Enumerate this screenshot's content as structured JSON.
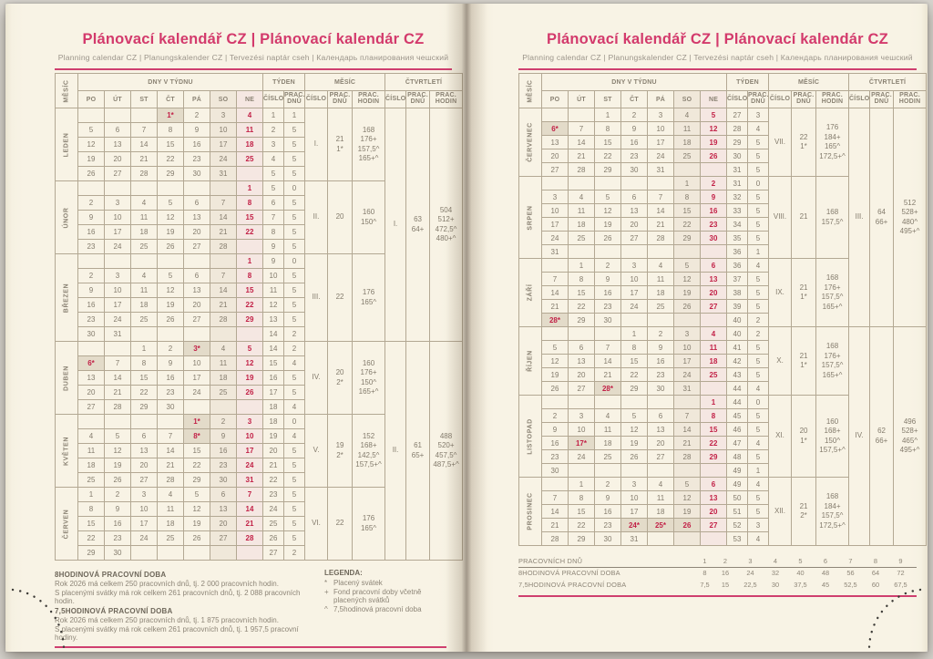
{
  "header": {
    "title": "Plánovací kalendář CZ | Plánovací kalendár CZ",
    "subtitle": "Planning calendar CZ | Planungskalender CZ | Tervezési naptár cseh | Календарь планирования чешский"
  },
  "colors": {
    "accent_pink": "#d33a6c",
    "date_red": "#c22147",
    "holiday_bg": "#e3dbc9",
    "saturday_bg": "#f0e8da",
    "sunday_bg": "#f5e7e2",
    "page_bg": "#f8f3e5",
    "grid_border": "#b3a893",
    "text_grey": "#837b6c"
  },
  "table_header": {
    "mesic": "MĚSÍC",
    "dny": "DNY V TÝDNU",
    "tyden": "TÝDEN",
    "mesic2": "MĚSÍC",
    "ctvrtleti": "ČTVRTLETÍ",
    "days": [
      "PO",
      "ÚT",
      "ST",
      "ČT",
      "PÁ",
      "SO",
      "NE"
    ],
    "cislo": "ČÍSLO",
    "prac_dnu": "PRAC.\nDNŮ",
    "prac_hodin": "PRAC.\nHODIN"
  },
  "pages": [
    {
      "months": [
        {
          "name": "LEDEN",
          "num": "I.",
          "dnu": "21\n1*",
          "hodin": "168\n176+\n157,5^\n165+^",
          "rows": [
            [
              "",
              "",
              "",
              "1*",
              "2",
              "3",
              "4",
              "1",
              "1"
            ],
            [
              "5",
              "6",
              "7",
              "8",
              "9",
              "10",
              "11",
              "2",
              "5"
            ],
            [
              "12",
              "13",
              "14",
              "15",
              "16",
              "17",
              "18",
              "3",
              "5"
            ],
            [
              "19",
              "20",
              "21",
              "22",
              "23",
              "24",
              "25",
              "4",
              "5"
            ],
            [
              "26",
              "27",
              "28",
              "29",
              "30",
              "31",
              "",
              "5",
              "5"
            ]
          ]
        },
        {
          "name": "ÚNOR",
          "num": "II.",
          "dnu": "20",
          "hodin": "160\n150^",
          "rows": [
            [
              "",
              "",
              "",
              "",
              "",
              "",
              "1",
              "5",
              "0"
            ],
            [
              "2",
              "3",
              "4",
              "5",
              "6",
              "7",
              "8",
              "6",
              "5"
            ],
            [
              "9",
              "10",
              "11",
              "12",
              "13",
              "14",
              "15",
              "7",
              "5"
            ],
            [
              "16",
              "17",
              "18",
              "19",
              "20",
              "21",
              "22",
              "8",
              "5"
            ],
            [
              "23",
              "24",
              "25",
              "26",
              "27",
              "28",
              "",
              "9",
              "5"
            ]
          ]
        },
        {
          "name": "BŘEZEN",
          "num": "III.",
          "dnu": "22",
          "hodin": "176\n165^",
          "rows": [
            [
              "",
              "",
              "",
              "",
              "",
              "",
              "1",
              "9",
              "0"
            ],
            [
              "2",
              "3",
              "4",
              "5",
              "6",
              "7",
              "8",
              "10",
              "5"
            ],
            [
              "9",
              "10",
              "11",
              "12",
              "13",
              "14",
              "15",
              "11",
              "5"
            ],
            [
              "16",
              "17",
              "18",
              "19",
              "20",
              "21",
              "22",
              "12",
              "5"
            ],
            [
              "23",
              "24",
              "25",
              "26",
              "27",
              "28",
              "29",
              "13",
              "5"
            ],
            [
              "30",
              "31",
              "",
              "",
              "",
              "",
              "",
              "14",
              "2"
            ]
          ]
        },
        {
          "name": "DUBEN",
          "num": "IV.",
          "dnu": "20\n2*",
          "hodin": "160\n176+\n150^\n165+^",
          "rows": [
            [
              "",
              "",
              "1",
              "2",
              "3*",
              "4",
              "5",
              "14",
              "2"
            ],
            [
              "6*",
              "7",
              "8",
              "9",
              "10",
              "11",
              "12",
              "15",
              "4"
            ],
            [
              "13",
              "14",
              "15",
              "16",
              "17",
              "18",
              "19",
              "16",
              "5"
            ],
            [
              "20",
              "21",
              "22",
              "23",
              "24",
              "25",
              "26",
              "17",
              "5"
            ],
            [
              "27",
              "28",
              "29",
              "30",
              "",
              "",
              "",
              "18",
              "4"
            ]
          ]
        },
        {
          "name": "KVĚTEN",
          "num": "V.",
          "dnu": "19\n2*",
          "hodin": "152\n168+\n142,5^\n157,5+^",
          "rows": [
            [
              "",
              "",
              "",
              "",
              "1*",
              "2",
              "3",
              "18",
              "0"
            ],
            [
              "4",
              "5",
              "6",
              "7",
              "8*",
              "9",
              "10",
              "19",
              "4"
            ],
            [
              "11",
              "12",
              "13",
              "14",
              "15",
              "16",
              "17",
              "20",
              "5"
            ],
            [
              "18",
              "19",
              "20",
              "21",
              "22",
              "23",
              "24",
              "21",
              "5"
            ],
            [
              "25",
              "26",
              "27",
              "28",
              "29",
              "30",
              "31",
              "22",
              "5"
            ]
          ]
        },
        {
          "name": "ČERVEN",
          "num": "VI.",
          "dnu": "22",
          "hodin": "176\n165^",
          "rows": [
            [
              "1",
              "2",
              "3",
              "4",
              "5",
              "6",
              "7",
              "23",
              "5"
            ],
            [
              "8",
              "9",
              "10",
              "11",
              "12",
              "13",
              "14",
              "24",
              "5"
            ],
            [
              "15",
              "16",
              "17",
              "18",
              "19",
              "20",
              "21",
              "25",
              "5"
            ],
            [
              "22",
              "23",
              "24",
              "25",
              "26",
              "27",
              "28",
              "26",
              "5"
            ],
            [
              "29",
              "30",
              "",
              "",
              "",
              "",
              "",
              "27",
              "2"
            ]
          ]
        }
      ],
      "quarters": [
        {
          "num": "I.",
          "dnu": "63\n64+",
          "hodin": "504\n512+\n472,5^\n480+^"
        },
        {
          "num": "II.",
          "dnu": "61\n65+",
          "hodin": "488\n520+\n457,5^\n487,5+^"
        }
      ]
    },
    {
      "months": [
        {
          "name": "ČERVENEC",
          "num": "VII.",
          "dnu": "22\n1*",
          "hodin": "176\n184+\n165^\n172,5+^",
          "rows": [
            [
              "",
              "",
              "1",
              "2",
              "3",
              "4",
              "5",
              "27",
              "3"
            ],
            [
              "6*",
              "7",
              "8",
              "9",
              "10",
              "11",
              "12",
              "28",
              "4"
            ],
            [
              "13",
              "14",
              "15",
              "16",
              "17",
              "18",
              "19",
              "29",
              "5"
            ],
            [
              "20",
              "21",
              "22",
              "23",
              "24",
              "25",
              "26",
              "30",
              "5"
            ],
            [
              "27",
              "28",
              "29",
              "30",
              "31",
              "",
              "",
              "31",
              "5"
            ]
          ]
        },
        {
          "name": "SRPEN",
          "num": "VIII.",
          "dnu": "21",
          "hodin": "168\n157,5^",
          "rows": [
            [
              "",
              "",
              "",
              "",
              "",
              "1",
              "2",
              "31",
              "0"
            ],
            [
              "3",
              "4",
              "5",
              "6",
              "7",
              "8",
              "9",
              "32",
              "5"
            ],
            [
              "10",
              "11",
              "12",
              "13",
              "14",
              "15",
              "16",
              "33",
              "5"
            ],
            [
              "17",
              "18",
              "19",
              "20",
              "21",
              "22",
              "23",
              "34",
              "5"
            ],
            [
              "24",
              "25",
              "26",
              "27",
              "28",
              "29",
              "30",
              "35",
              "5"
            ],
            [
              "31",
              "",
              "",
              "",
              "",
              "",
              "",
              "36",
              "1"
            ]
          ]
        },
        {
          "name": "ZÁŘÍ",
          "num": "IX.",
          "dnu": "21\n1*",
          "hodin": "168\n176+\n157,5^\n165+^",
          "rows": [
            [
              "",
              "1",
              "2",
              "3",
              "4",
              "5",
              "6",
              "36",
              "4"
            ],
            [
              "7",
              "8",
              "9",
              "10",
              "11",
              "12",
              "13",
              "37",
              "5"
            ],
            [
              "14",
              "15",
              "16",
              "17",
              "18",
              "19",
              "20",
              "38",
              "5"
            ],
            [
              "21",
              "22",
              "23",
              "24",
              "25",
              "26",
              "27",
              "39",
              "5"
            ],
            [
              "28*",
              "29",
              "30",
              "",
              "",
              "",
              "",
              "40",
              "2"
            ]
          ]
        },
        {
          "name": "ŘÍJEN",
          "num": "X.",
          "dnu": "21\n1*",
          "hodin": "168\n176+\n157,5^\n165+^",
          "rows": [
            [
              "",
              "",
              "",
              "1",
              "2",
              "3",
              "4",
              "40",
              "2"
            ],
            [
              "5",
              "6",
              "7",
              "8",
              "9",
              "10",
              "11",
              "41",
              "5"
            ],
            [
              "12",
              "13",
              "14",
              "15",
              "16",
              "17",
              "18",
              "42",
              "5"
            ],
            [
              "19",
              "20",
              "21",
              "22",
              "23",
              "24",
              "25",
              "43",
              "5"
            ],
            [
              "26",
              "27",
              "28*",
              "29",
              "30",
              "31",
              "",
              "44",
              "4"
            ]
          ]
        },
        {
          "name": "LISTOPAD",
          "num": "XI.",
          "dnu": "20\n1*",
          "hodin": "160\n168+\n150^\n157,5+^",
          "rows": [
            [
              "",
              "",
              "",
              "",
              "",
              "",
              "1",
              "44",
              "0"
            ],
            [
              "2",
              "3",
              "4",
              "5",
              "6",
              "7",
              "8",
              "45",
              "5"
            ],
            [
              "9",
              "10",
              "11",
              "12",
              "13",
              "14",
              "15",
              "46",
              "5"
            ],
            [
              "16",
              "17*",
              "18",
              "19",
              "20",
              "21",
              "22",
              "47",
              "4"
            ],
            [
              "23",
              "24",
              "25",
              "26",
              "27",
              "28",
              "29",
              "48",
              "5"
            ],
            [
              "30",
              "",
              "",
              "",
              "",
              "",
              "",
              "49",
              "1"
            ]
          ]
        },
        {
          "name": "PROSINEC",
          "num": "XII.",
          "dnu": "21\n2*",
          "hodin": "168\n184+\n157,5^\n172,5+^",
          "rows": [
            [
              "",
              "1",
              "2",
              "3",
              "4",
              "5",
              "6",
              "49",
              "4"
            ],
            [
              "7",
              "8",
              "9",
              "10",
              "11",
              "12",
              "13",
              "50",
              "5"
            ],
            [
              "14",
              "15",
              "16",
              "17",
              "18",
              "19",
              "20",
              "51",
              "5"
            ],
            [
              "21",
              "22",
              "23",
              "24*",
              "25*",
              "26!",
              "27",
              "52",
              "3"
            ],
            [
              "28",
              "29",
              "30",
              "31",
              "",
              "",
              "",
              "53",
              "4"
            ]
          ]
        }
      ],
      "quarters": [
        {
          "num": "III.",
          "dnu": "64\n66+",
          "hodin": "512\n528+\n480^\n495+^"
        },
        {
          "num": "IV.",
          "dnu": "62\n66+",
          "hodin": "496\n528+\n465^\n495+^"
        }
      ]
    }
  ],
  "footer_left": {
    "h8": "8HODINOVÁ PRACOVNÍ DOBA",
    "l8a": "Rok 2026 má celkem 250 pracovních dnů, tj. 2 000 pracovních hodin.",
    "l8b": "S placenými svátky má rok celkem 261 pracovních dnů, tj. 2 088 pracovních hodin.",
    "h75": "7,5HODINOVÁ PRACOVNÍ DOBA",
    "l75a": "Rok 2026 má celkem 250 pracovních dnů, tj. 1 875 pracovních hodin.",
    "l75b": "S placenými svátky má rok celkem 261 pracovních dnů, tj. 1 957,5 pracovní hodiny."
  },
  "legend": {
    "title": "LEGENDA:",
    "items": [
      {
        "sym": "*",
        "text": "Placený svátek"
      },
      {
        "sym": "+",
        "text": "Fond pracovní doby včetně placených svátků"
      },
      {
        "sym": "^",
        "text": "7,5hodinová pracovní doba"
      }
    ]
  },
  "footer_right": {
    "rows": [
      {
        "label": "PRACOVNÍCH DNŮ",
        "values": [
          "1",
          "2",
          "3",
          "4",
          "5",
          "6",
          "7",
          "8",
          "9"
        ]
      },
      {
        "label": "8HODINOVÁ PRACOVNÍ DOBA",
        "values": [
          "8",
          "16",
          "24",
          "32",
          "40",
          "48",
          "56",
          "64",
          "72"
        ]
      },
      {
        "label": "7,5HODINOVÁ PRACOVNÍ DOBA",
        "values": [
          "7,5",
          "15",
          "22,5",
          "30",
          "37,5",
          "45",
          "52,5",
          "60",
          "67,5"
        ]
      }
    ]
  }
}
